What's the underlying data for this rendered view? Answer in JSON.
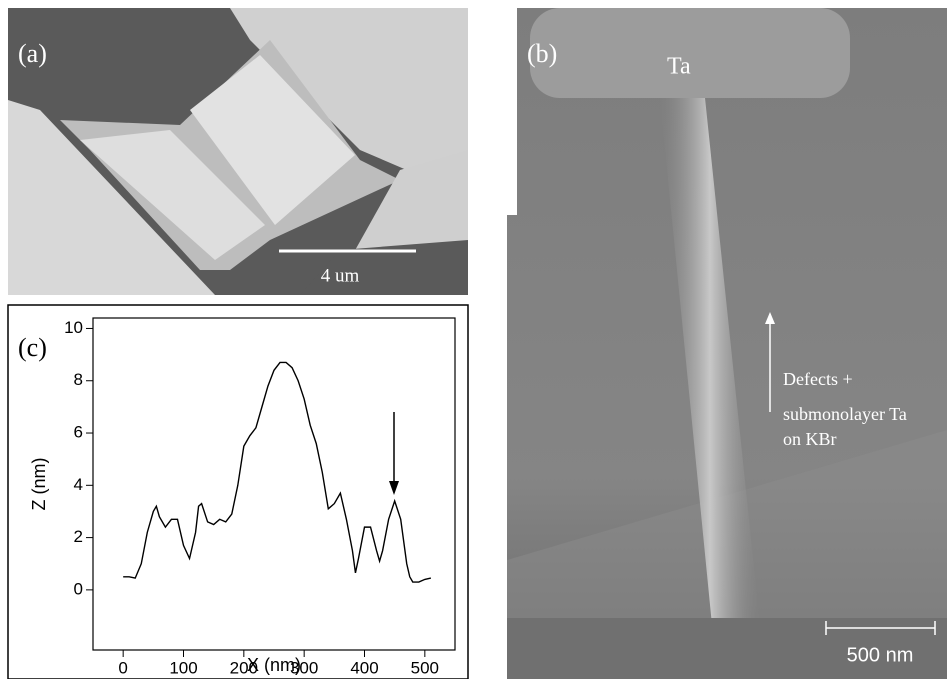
{
  "panel_a": {
    "label": "(a)",
    "scale_bar": "4 um"
  },
  "panel_b": {
    "label": "(b)",
    "pad_label": "Ta",
    "annotation": [
      "Defects +",
      "submonolayer Ta",
      "on KBr"
    ],
    "scale_bar": "500 nm"
  },
  "chart_data": {
    "type": "line",
    "panel_label": "(c)",
    "x_label": "X (nm)",
    "y_label": "Z (nm)",
    "x": [
      0,
      10,
      20,
      30,
      40,
      50,
      55,
      60,
      70,
      80,
      90,
      100,
      110,
      120,
      125,
      130,
      140,
      150,
      160,
      170,
      180,
      190,
      200,
      210,
      220,
      230,
      240,
      250,
      260,
      270,
      280,
      290,
      300,
      310,
      320,
      330,
      340,
      350,
      360,
      370,
      380,
      385,
      390,
      400,
      410,
      420,
      425,
      430,
      440,
      450,
      460,
      470,
      475,
      480,
      490,
      500,
      510
    ],
    "values": [
      0.5,
      0.5,
      0.45,
      1.0,
      2.2,
      3.0,
      3.2,
      2.8,
      2.4,
      2.7,
      2.7,
      1.7,
      1.2,
      2.2,
      3.2,
      3.3,
      2.6,
      2.5,
      2.7,
      2.6,
      2.9,
      4.0,
      5.5,
      5.9,
      6.2,
      7.0,
      7.8,
      8.4,
      8.7,
      8.7,
      8.5,
      8.0,
      7.3,
      6.3,
      5.6,
      4.5,
      3.1,
      3.3,
      3.7,
      2.7,
      1.5,
      0.65,
      1.2,
      2.4,
      2.4,
      1.5,
      1.1,
      1.5,
      2.7,
      3.4,
      2.7,
      1.0,
      0.5,
      0.3,
      0.3,
      0.4,
      0.45
    ],
    "color": "#000000",
    "xlim": [
      -50,
      550
    ],
    "xticks": [
      0,
      100,
      200,
      300,
      400,
      500
    ],
    "ylim": [
      -2.3,
      10.4
    ],
    "yticks": [
      0,
      2,
      4,
      6,
      8,
      10
    ]
  }
}
